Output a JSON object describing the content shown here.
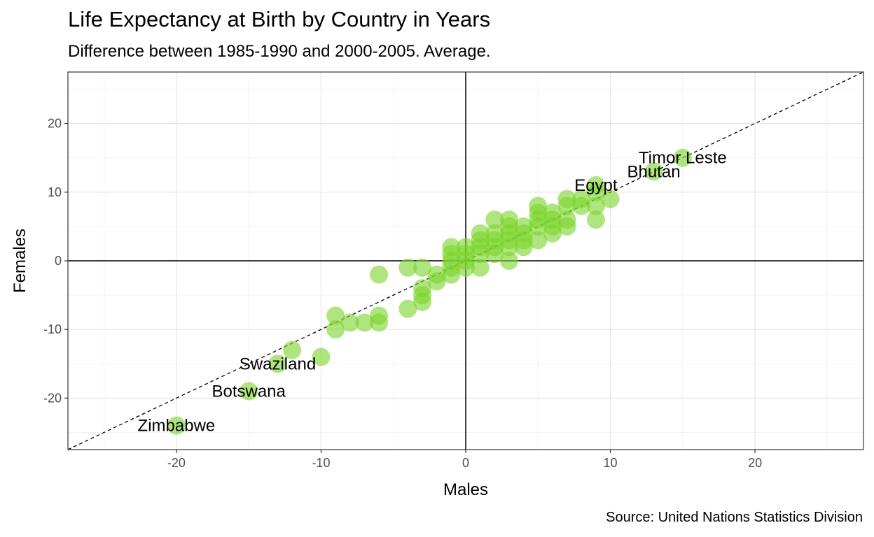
{
  "chart_data": {
    "type": "scatter",
    "title": "Life Expectancy at Birth by Country in Years",
    "subtitle": "Difference between 1985-1990 and 2000-2005. Average.",
    "caption": "Source: United Nations Statistics Division",
    "xlabel": "Males",
    "ylabel": "Females",
    "xlim": [
      -27.5,
      27.5
    ],
    "ylim": [
      -27.5,
      27.5
    ],
    "x_ticks": [
      -20,
      -10,
      0,
      10,
      20
    ],
    "y_ticks": [
      -20,
      -10,
      0,
      10,
      20
    ],
    "x_tick_labels": [
      "-20",
      "-10",
      "0",
      "10",
      "20"
    ],
    "y_tick_labels": [
      "-20",
      "-10",
      "0",
      "10",
      "20"
    ],
    "grid": true,
    "reference_lines": [
      "x = 0",
      "y = 0",
      "y = x (dashed)"
    ],
    "point_color": "#7ad42a",
    "points": [
      {
        "x": -20,
        "y": -24
      },
      {
        "x": -15,
        "y": -19
      },
      {
        "x": -13,
        "y": -15
      },
      {
        "x": -12,
        "y": -13
      },
      {
        "x": -10,
        "y": -14
      },
      {
        "x": -9,
        "y": -8
      },
      {
        "x": -9,
        "y": -10
      },
      {
        "x": -8,
        "y": -9
      },
      {
        "x": -7,
        "y": -9
      },
      {
        "x": -6,
        "y": -8
      },
      {
        "x": -6,
        "y": -9
      },
      {
        "x": -6,
        "y": -2
      },
      {
        "x": -4,
        "y": -7
      },
      {
        "x": -4,
        "y": -1
      },
      {
        "x": -3,
        "y": -1
      },
      {
        "x": -3,
        "y": -4
      },
      {
        "x": -3,
        "y": -5
      },
      {
        "x": -3,
        "y": -6
      },
      {
        "x": -2,
        "y": -2
      },
      {
        "x": -2,
        "y": -3
      },
      {
        "x": -1,
        "y": 2
      },
      {
        "x": -1,
        "y": 1
      },
      {
        "x": -1,
        "y": 0
      },
      {
        "x": -1,
        "y": -1
      },
      {
        "x": -1,
        "y": -2
      },
      {
        "x": 0,
        "y": 2
      },
      {
        "x": 0,
        "y": 1
      },
      {
        "x": 0,
        "y": 0
      },
      {
        "x": 0,
        "y": -1
      },
      {
        "x": 1,
        "y": 4
      },
      {
        "x": 1,
        "y": 3
      },
      {
        "x": 1,
        "y": 2
      },
      {
        "x": 1,
        "y": 1
      },
      {
        "x": 1,
        "y": -1
      },
      {
        "x": 2,
        "y": 6
      },
      {
        "x": 2,
        "y": 4
      },
      {
        "x": 2,
        "y": 3
      },
      {
        "x": 2,
        "y": 2
      },
      {
        "x": 2,
        "y": 1
      },
      {
        "x": 3,
        "y": 6
      },
      {
        "x": 3,
        "y": 5
      },
      {
        "x": 3,
        "y": 4
      },
      {
        "x": 3,
        "y": 3
      },
      {
        "x": 3,
        "y": 2
      },
      {
        "x": 3,
        "y": 0
      },
      {
        "x": 4,
        "y": 5
      },
      {
        "x": 4,
        "y": 4
      },
      {
        "x": 4,
        "y": 3
      },
      {
        "x": 4,
        "y": 2
      },
      {
        "x": 5,
        "y": 8
      },
      {
        "x": 5,
        "y": 7
      },
      {
        "x": 5,
        "y": 6
      },
      {
        "x": 5,
        "y": 5
      },
      {
        "x": 5,
        "y": 3
      },
      {
        "x": 6,
        "y": 7
      },
      {
        "x": 6,
        "y": 6
      },
      {
        "x": 6,
        "y": 5
      },
      {
        "x": 6,
        "y": 4
      },
      {
        "x": 7,
        "y": 9
      },
      {
        "x": 7,
        "y": 8
      },
      {
        "x": 7,
        "y": 6
      },
      {
        "x": 7,
        "y": 5
      },
      {
        "x": 8,
        "y": 9
      },
      {
        "x": 8,
        "y": 8
      },
      {
        "x": 9,
        "y": 11
      },
      {
        "x": 9,
        "y": 10
      },
      {
        "x": 9,
        "y": 8
      },
      {
        "x": 9,
        "y": 6
      },
      {
        "x": 10,
        "y": 9
      },
      {
        "x": 13,
        "y": 13
      },
      {
        "x": 15,
        "y": 15
      }
    ],
    "labels": [
      {
        "text": "Zimbabwe",
        "x": -20,
        "y": -24
      },
      {
        "text": "Botswana",
        "x": -15,
        "y": -19
      },
      {
        "text": "Swaziland",
        "x": -13,
        "y": -15
      },
      {
        "text": "Egypt",
        "x": 9,
        "y": 11
      },
      {
        "text": "Bhutan",
        "x": 13,
        "y": 13
      },
      {
        "text": "Timor Leste",
        "x": 15,
        "y": 15
      }
    ]
  }
}
